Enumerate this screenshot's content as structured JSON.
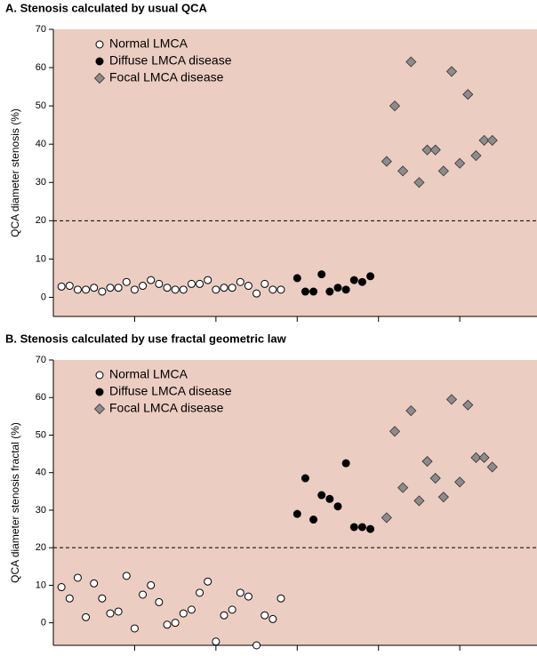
{
  "chart_data": [
    {
      "type": "scatter",
      "title": "A. Stenosis calculated by usual QCA",
      "y_label": "QCA diameter stenosis (%)",
      "xlim": [
        0,
        59.5
      ],
      "xticks": [
        10,
        20,
        30,
        40,
        50
      ],
      "ylim": [
        -5,
        70
      ],
      "yticks": [
        0,
        10,
        20,
        30,
        40,
        50,
        60,
        70
      ],
      "threshold": 20,
      "background": "#ebcdc1",
      "series": [
        {
          "name": "Normal LMCA",
          "marker": "open-circle",
          "color": "#000000",
          "x": [
            1,
            2,
            3,
            4,
            5,
            6,
            7,
            8,
            9,
            10,
            11,
            12,
            13,
            14,
            15,
            16,
            17,
            18,
            19,
            20,
            21,
            22,
            23,
            24,
            25,
            26,
            27,
            28
          ],
          "values": [
            2.8,
            3,
            2,
            2,
            2.5,
            1.5,
            2.5,
            2.5,
            4,
            2,
            3,
            4.5,
            3.5,
            2.5,
            2,
            2,
            3.5,
            3.5,
            4.5,
            2,
            2.5,
            2.5,
            4,
            3,
            1,
            3.5,
            2,
            2
          ]
        },
        {
          "name": "Diffuse LMCA disease",
          "marker": "filled-circle",
          "color": "#000000",
          "x": [
            30,
            31,
            32,
            33,
            34,
            35,
            36,
            37,
            38,
            39
          ],
          "values": [
            5,
            1.5,
            1.5,
            6,
            1.5,
            2.5,
            2,
            4.5,
            4,
            5.5
          ]
        },
        {
          "name": "Focal LMCA disease",
          "marker": "diamond",
          "color": "#8c8c8c",
          "x": [
            41,
            42,
            43,
            44,
            45,
            46,
            47,
            48,
            49,
            50,
            51,
            52,
            53,
            54
          ],
          "values": [
            35.5,
            50,
            33,
            61.5,
            30,
            38.5,
            38.5,
            33,
            59,
            35,
            53,
            37,
            41,
            41
          ]
        }
      ]
    },
    {
      "type": "scatter",
      "title": "B. Stenosis calculated by use fractal geometric law",
      "y_label": "QCA diameter stenosis fractal (%)",
      "xlim": [
        0,
        59.5
      ],
      "xticks": [
        10,
        20,
        30,
        40,
        50
      ],
      "ylim": [
        -6,
        70
      ],
      "yticks": [
        0,
        10,
        20,
        30,
        40,
        50,
        60,
        70
      ],
      "threshold": 20,
      "background": "#ebcdc1",
      "series": [
        {
          "name": "Normal LMCA",
          "marker": "open-circle",
          "color": "#000000",
          "x": [
            1,
            2,
            3,
            4,
            5,
            6,
            7,
            8,
            9,
            10,
            11,
            12,
            13,
            14,
            15,
            16,
            17,
            18,
            19,
            20,
            21,
            22,
            23,
            24,
            25,
            26,
            27,
            28
          ],
          "values": [
            9.5,
            6.5,
            12,
            1.5,
            10.5,
            6.5,
            2.5,
            3,
            12.5,
            -1.5,
            7.5,
            10,
            5.5,
            -0.5,
            0,
            2.5,
            3.5,
            8,
            11,
            -5,
            2,
            3.5,
            8,
            7,
            -6,
            2,
            1,
            6.5
          ]
        },
        {
          "name": "Diffuse LMCA disease",
          "marker": "filled-circle",
          "color": "#000000",
          "x": [
            30,
            31,
            32,
            33,
            34,
            35,
            36,
            37,
            38,
            39
          ],
          "values": [
            29,
            38.5,
            27.5,
            34,
            33,
            31,
            42.5,
            25.5,
            25.5,
            25
          ]
        },
        {
          "name": "Focal LMCA disease",
          "marker": "diamond",
          "color": "#8c8c8c",
          "x": [
            41,
            42,
            43,
            44,
            45,
            46,
            47,
            48,
            49,
            50,
            51,
            52,
            53,
            54
          ],
          "values": [
            28,
            51,
            36,
            56.5,
            32.5,
            43,
            38.5,
            33.5,
            59.5,
            37.5,
            58,
            44,
            44,
            41.5
          ]
        }
      ]
    }
  ]
}
